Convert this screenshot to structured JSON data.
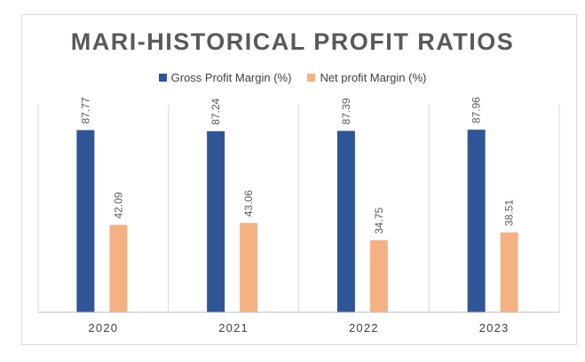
{
  "chart_data": {
    "type": "bar",
    "title": "MARI-HISTORICAL PROFIT RATIOS",
    "categories": [
      "2020",
      "2021",
      "2022",
      "2023"
    ],
    "series": [
      {
        "name": "Gross Profit Margin (%)",
        "color": "#2F5597",
        "values": [
          87.77,
          87.24,
          87.39,
          87.96
        ],
        "labels": [
          "87.77",
          "87.24",
          "87.39",
          "87.96"
        ]
      },
      {
        "name": "Net profit Margin (%)",
        "color": "#F4B183",
        "values": [
          42.09,
          43.06,
          34.75,
          38.51
        ],
        "labels": [
          "42.09",
          "43.06",
          "34.75",
          "38.51"
        ]
      }
    ],
    "ylim": [
      0,
      100
    ],
    "grid": "vertical category separators",
    "legend": "top-center"
  }
}
